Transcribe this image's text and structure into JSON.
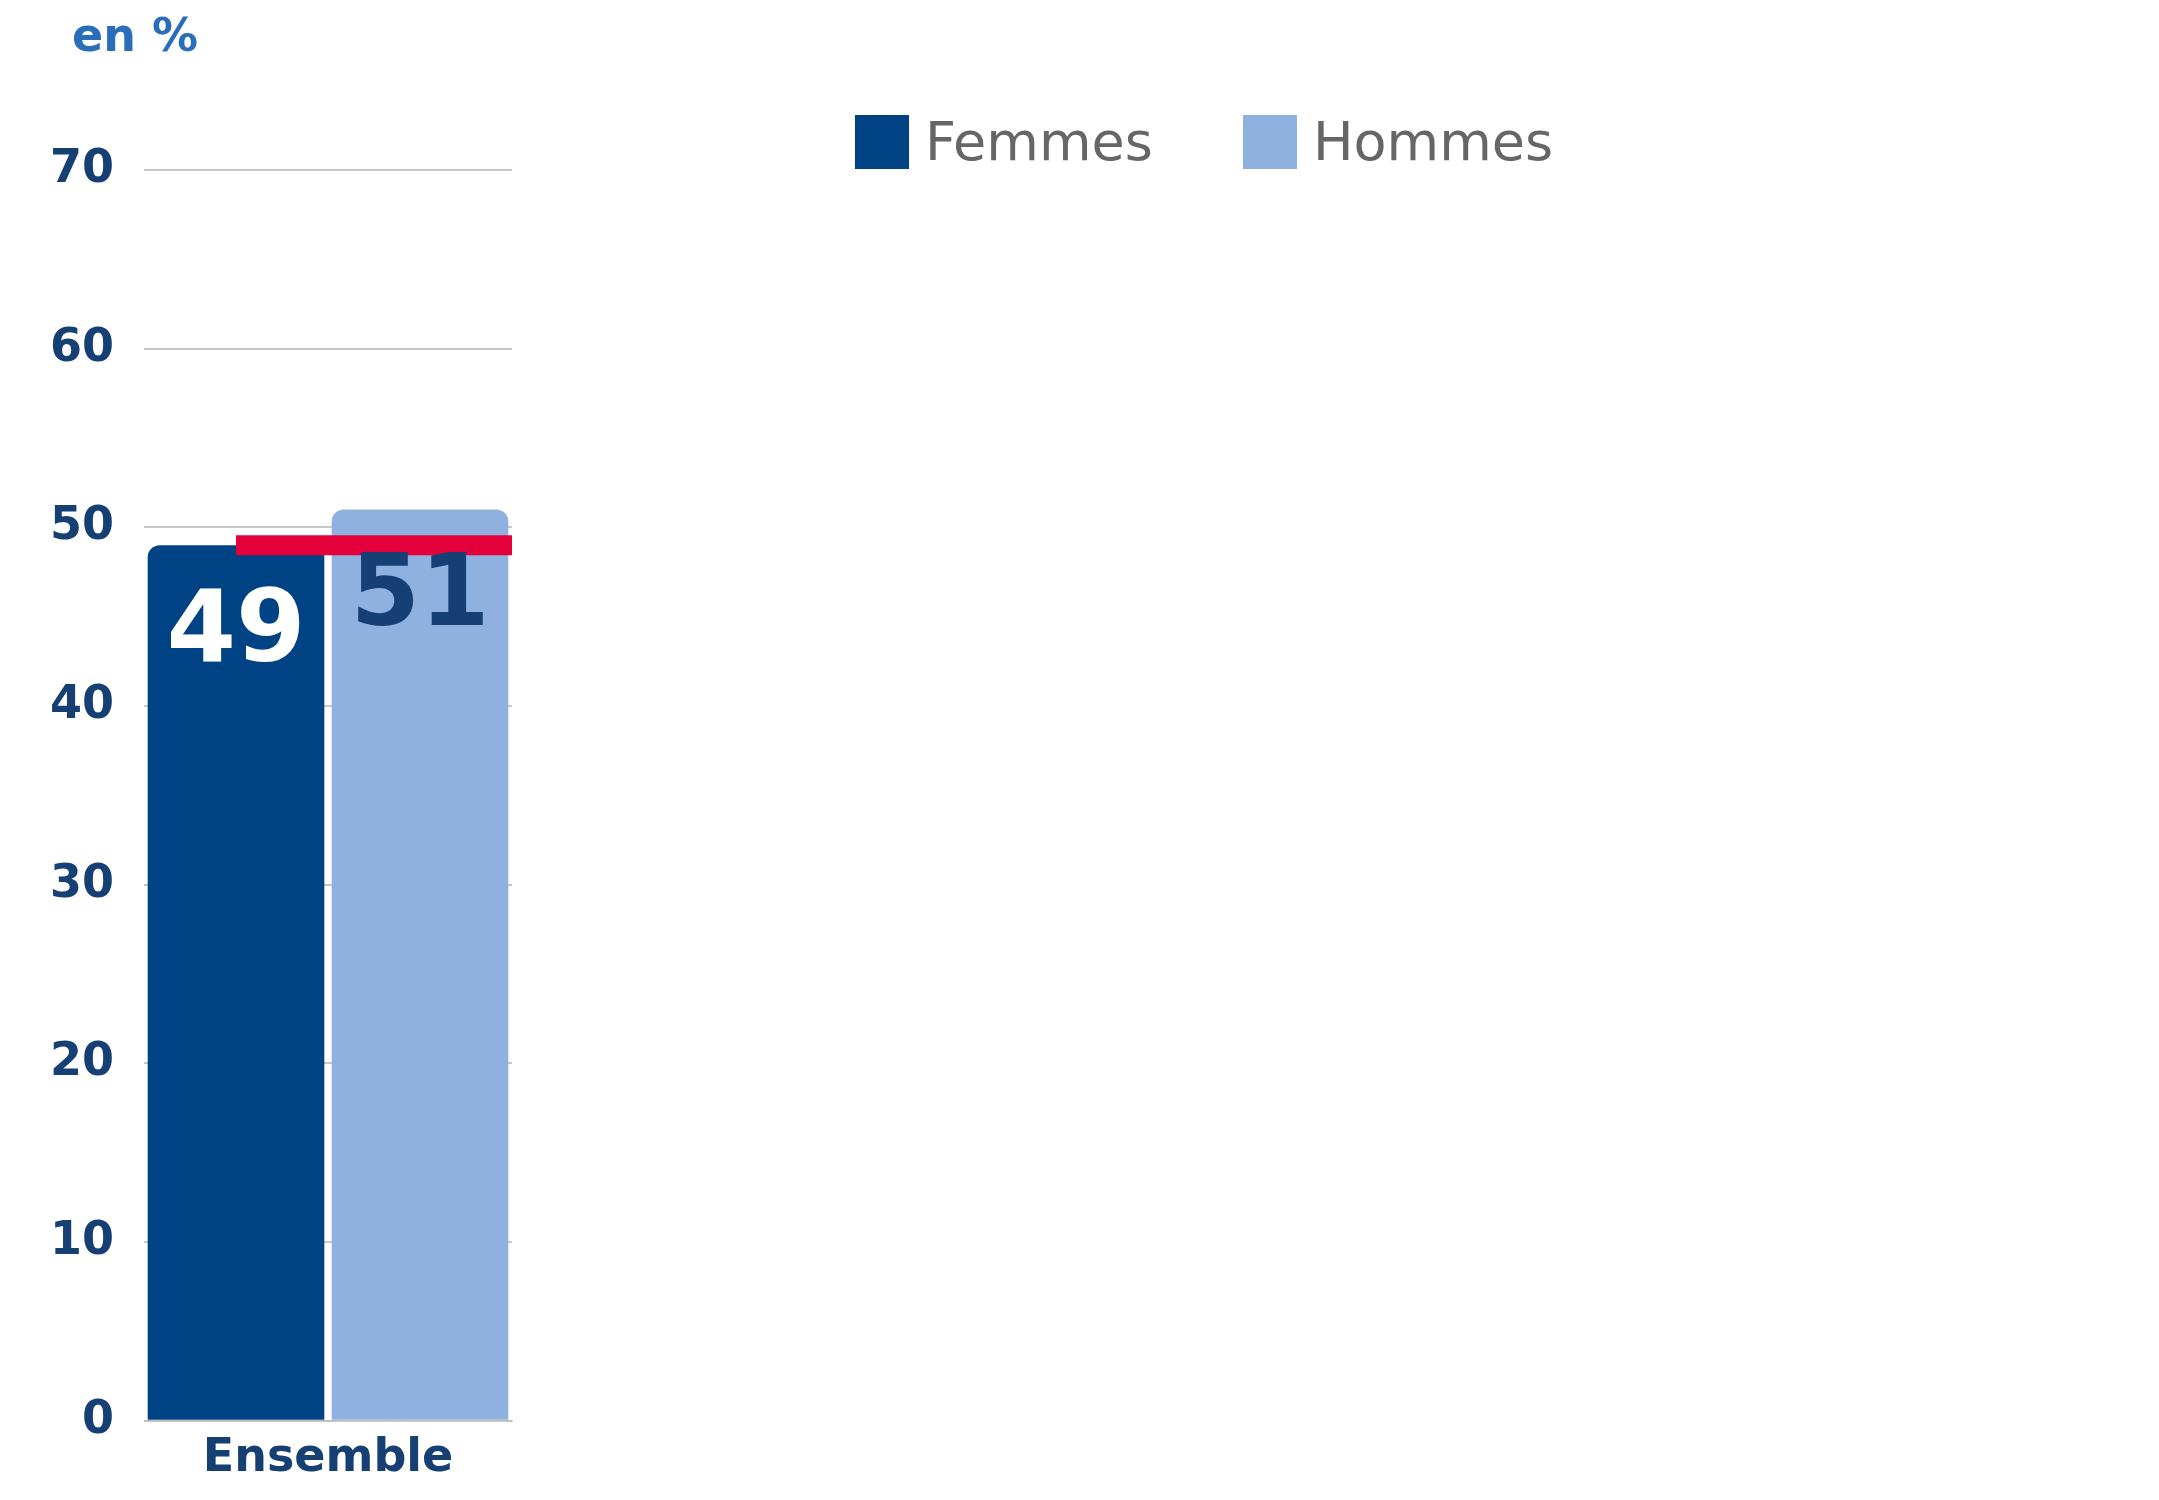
{
  "chart_data": {
    "type": "bar",
    "ylabel": "en %",
    "categories": [
      "Ensemble"
    ],
    "series": [
      {
        "name": "Femmes",
        "color": "#004385",
        "values": [
          49
        ]
      },
      {
        "name": "Hommes",
        "color": "#8fb1e0",
        "values": [
          51
        ]
      }
    ],
    "ylim": [
      0,
      70
    ],
    "yticks": [
      0,
      10,
      20,
      30,
      40,
      50,
      60,
      70
    ],
    "grid": "y",
    "legend": "top",
    "data_labels": true,
    "ref_lines": [
      {
        "axis": "y",
        "value": 49,
        "color": "#e4003a"
      }
    ]
  }
}
